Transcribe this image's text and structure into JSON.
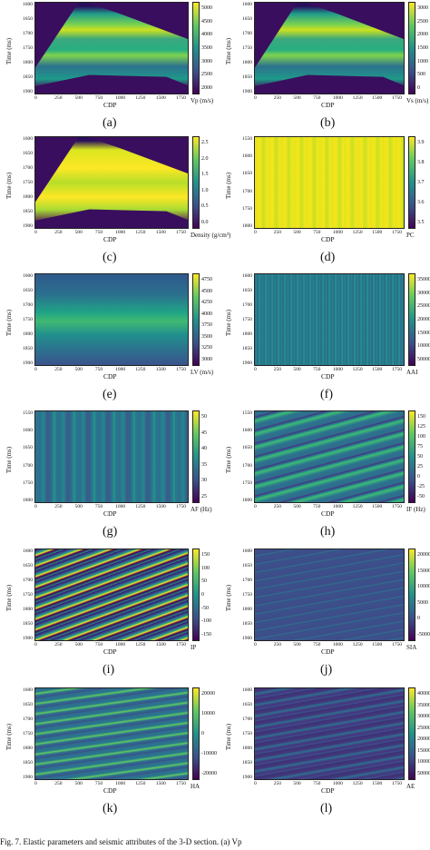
{
  "panels": [
    {
      "id": "a",
      "letter": "(a)",
      "unit": "Vp (m/s)",
      "yticks": [
        "1600",
        "1650",
        "1700",
        "1750",
        "1800",
        "1850",
        "1900"
      ],
      "xticks": [
        "0",
        "250",
        "500",
        "750",
        "1000",
        "1250",
        "1500",
        "1750"
      ],
      "cbar": [
        "5000",
        "4500",
        "4000",
        "3500",
        "3000",
        "2500",
        "2000"
      ],
      "style": "wedge"
    },
    {
      "id": "b",
      "letter": "(b)",
      "unit": "Vs (m/s)",
      "yticks": [
        "1600",
        "1650",
        "1700",
        "1750",
        "1800",
        "1850",
        "1900"
      ],
      "xticks": [
        "0",
        "250",
        "500",
        "750",
        "1000",
        "1250",
        "1500",
        "1750"
      ],
      "cbar": [
        "3000",
        "2500",
        "2000",
        "1500",
        "1000",
        "500",
        "0"
      ],
      "style": "wedge"
    },
    {
      "id": "c",
      "letter": "(c)",
      "unit": "Density (g/cm³)",
      "yticks": [
        "1600",
        "1650",
        "1700",
        "1750",
        "1800",
        "1850",
        "1900"
      ],
      "xticks": [
        "0",
        "250",
        "500",
        "750",
        "1000",
        "1250",
        "1500",
        "1750"
      ],
      "cbar": [
        "2.5",
        "2.0",
        "1.5",
        "1.0",
        "0.5",
        "0.0"
      ],
      "style": "wedgeYellow"
    },
    {
      "id": "d",
      "letter": "(d)",
      "unit": "PC",
      "yticks": [
        "1550",
        "1600",
        "1650",
        "1700",
        "1750",
        "1800"
      ],
      "xticks": [
        "0",
        "250",
        "500",
        "750",
        "1000",
        "1250",
        "1500",
        "1750"
      ],
      "cbar": [
        "3.9",
        "3.8",
        "3.7",
        "3.6",
        "3.5"
      ],
      "style": "yellowNoise"
    },
    {
      "id": "e",
      "letter": "(e)",
      "unit": "LV (m/s)",
      "yticks": [
        "1600",
        "1650",
        "1700",
        "1750",
        "1800",
        "1850",
        "1900"
      ],
      "xticks": [
        "0",
        "250",
        "500",
        "750",
        "1000",
        "1250",
        "1500",
        "1750"
      ],
      "cbar": [
        "4750",
        "4500",
        "4250",
        "4000",
        "3750",
        "3500",
        "3250",
        "3000"
      ],
      "style": "smooth"
    },
    {
      "id": "f",
      "letter": "(f)",
      "unit": "AAI",
      "yticks": [
        "1600",
        "1650",
        "1700",
        "1750",
        "1800",
        "1850",
        "1900"
      ],
      "xticks": [
        "0",
        "250",
        "500",
        "750",
        "1000",
        "1250",
        "1500",
        "1750"
      ],
      "cbar": [
        "350000",
        "300000",
        "250000",
        "200000",
        "150000",
        "100000",
        "50000"
      ],
      "style": "stripes"
    },
    {
      "id": "g",
      "letter": "(g)",
      "unit": "AF (Hz)",
      "yticks": [
        "1550",
        "1600",
        "1650",
        "1700",
        "1750",
        "1800"
      ],
      "xticks": [
        "0",
        "250",
        "500",
        "750",
        "1000",
        "1250",
        "1500",
        "1750"
      ],
      "cbar": [
        "50",
        "45",
        "40",
        "35",
        "30",
        "25"
      ],
      "style": "vertical"
    },
    {
      "id": "h",
      "letter": "(h)",
      "unit": "IF (Hz)",
      "yticks": [
        "1550",
        "1600",
        "1650",
        "1700",
        "1750",
        "1800"
      ],
      "xticks": [
        "0",
        "250",
        "500",
        "750",
        "1000",
        "1250",
        "1500",
        "1750"
      ],
      "cbar": [
        "150",
        "125",
        "100",
        "75",
        "50",
        "25",
        "0",
        "-25",
        "-50"
      ],
      "style": "waves"
    },
    {
      "id": "i",
      "letter": "(i)",
      "unit": "IP",
      "yticks": [
        "1600",
        "1650",
        "1700",
        "1750",
        "1800",
        "1850",
        "1900"
      ],
      "xticks": [
        "0",
        "250",
        "500",
        "750",
        "1000",
        "1250",
        "1500",
        "1750"
      ],
      "cbar": [
        "150",
        "100",
        "50",
        "0",
        "-50",
        "-100",
        "-150"
      ],
      "style": "phase"
    },
    {
      "id": "j",
      "letter": "(j)",
      "unit": "SIA",
      "yticks": [
        "1600",
        "1650",
        "1700",
        "1750",
        "1800",
        "1850",
        "1900"
      ],
      "xticks": [
        "0",
        "250",
        "500",
        "750",
        "1000",
        "1250",
        "1500",
        "1750"
      ],
      "cbar": [
        "20000",
        "15000",
        "10000",
        "5000",
        "0",
        "-5000"
      ],
      "style": "faint"
    },
    {
      "id": "k",
      "letter": "(k)",
      "unit": "HA",
      "yticks": [
        "1600",
        "1650",
        "1700",
        "1750",
        "1800",
        "1850",
        "1900"
      ],
      "xticks": [
        "0",
        "250",
        "500",
        "750",
        "1000",
        "1250",
        "1500",
        "1750"
      ],
      "cbar": [
        "20000",
        "10000",
        "0",
        "-10000",
        "-20000"
      ],
      "style": "hilbert"
    },
    {
      "id": "l",
      "letter": "(l)",
      "unit": "AE",
      "yticks": [
        "1600",
        "1650",
        "1700",
        "1750",
        "1800",
        "1850",
        "1900"
      ],
      "xticks": [
        "0",
        "250",
        "500",
        "750",
        "1000",
        "1250",
        "1500",
        "1750"
      ],
      "cbar": [
        "400000",
        "350000",
        "300000",
        "250000",
        "200000",
        "150000",
        "100000",
        "50000"
      ],
      "style": "envelope"
    }
  ],
  "labels": {
    "xlabel": "CDP",
    "ylabel": "Time (ms)"
  },
  "caption": "Fig. 7.   Elastic parameters and seismic attributes of the 3-D section. (a) Vp"
}
